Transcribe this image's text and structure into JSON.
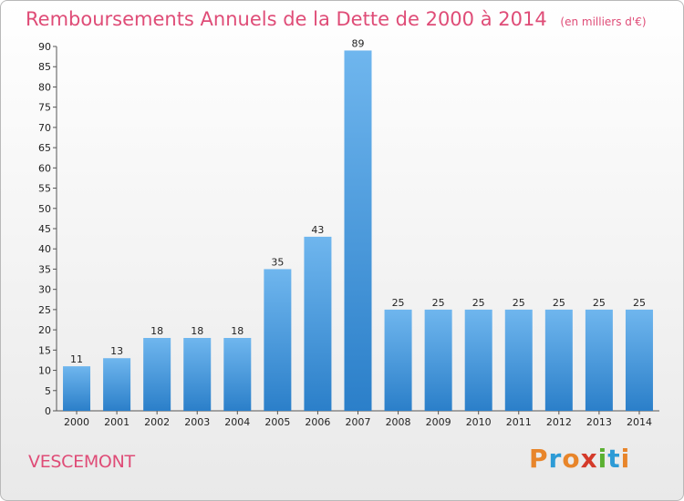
{
  "header": {
    "title": "Remboursements Annuels de la Dette de 2000 à 2014",
    "unit": "(en milliers d'€)"
  },
  "footer": {
    "commune": "VESCEMONT",
    "logo": "Proxiti",
    "logo_colors": [
      "#e8852a",
      "#2d9bd6",
      "#e8852a",
      "#d43a2a",
      "#5ab031",
      "#2d9bd6",
      "#e8852a"
    ]
  },
  "chart_data": {
    "type": "bar",
    "title": "Remboursements Annuels de la Dette de 2000 à 2014",
    "subtitle": "(en milliers d'€)",
    "xlabel": "",
    "ylabel": "",
    "categories": [
      "2000",
      "2001",
      "2002",
      "2003",
      "2004",
      "2005",
      "2006",
      "2007",
      "2008",
      "2009",
      "2010",
      "2011",
      "2012",
      "2013",
      "2014"
    ],
    "values": [
      11,
      13,
      18,
      18,
      18,
      35,
      43,
      89,
      25,
      25,
      25,
      25,
      25,
      25,
      25
    ],
    "ylim": [
      0,
      90
    ],
    "yticks": [
      0,
      5,
      10,
      15,
      20,
      25,
      30,
      35,
      40,
      45,
      50,
      55,
      60,
      65,
      70,
      75,
      80,
      85,
      90
    ],
    "grid": false,
    "legend": "none",
    "bar_color_light": "#6fb6ee",
    "bar_color_dark": "#2b7fc9"
  }
}
